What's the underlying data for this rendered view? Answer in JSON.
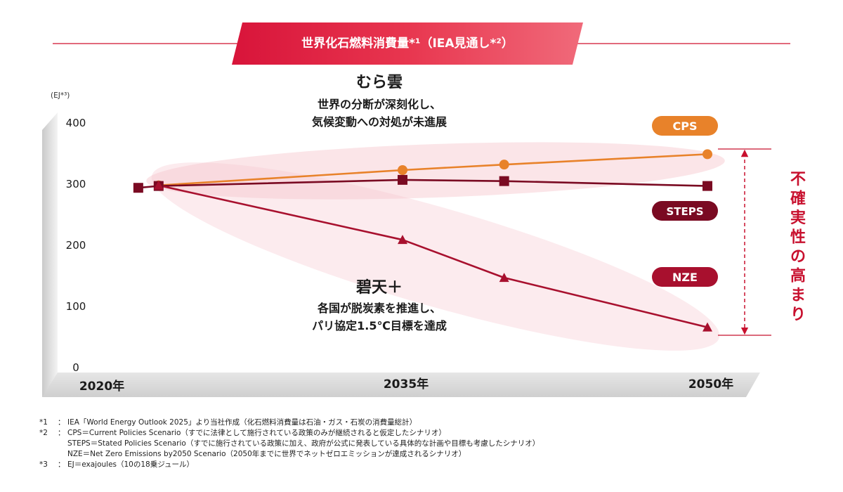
{
  "header": {
    "title": "世界化石燃料消費量*¹（IEA見通し*²）"
  },
  "chart_data": {
    "type": "line",
    "unit_label": "(EJ*³)",
    "ylim": [
      0,
      400
    ],
    "yticks": [
      0,
      100,
      200,
      300,
      400
    ],
    "x_tick_labels": [
      "2020年",
      "2035年",
      "2050年"
    ],
    "x": [
      2022,
      2023,
      2035,
      2040,
      2050
    ],
    "series": [
      {
        "name": "CPS",
        "marker": "circle",
        "color": "#e8822a",
        "values": [
          null,
          298,
          323,
          332,
          349
        ]
      },
      {
        "name": "STEPS",
        "marker": "square",
        "color": "#7a0a22",
        "values": [
          294,
          297,
          307,
          305,
          297
        ]
      },
      {
        "name": "NZE",
        "marker": "triangle",
        "color": "#a8102e",
        "values": [
          null,
          298,
          209,
          147,
          66
        ]
      }
    ],
    "annotations": {
      "murakumo": {
        "title": "むら雲",
        "lines": [
          "世界の分断が深刻化し、",
          "気候変動への対処が未進展"
        ]
      },
      "hekiten": {
        "title": "碧天＋",
        "lines": [
          "各国が脱炭素を推進し、",
          "パリ協定1.5℃目標を達成"
        ]
      },
      "uncertainty": "不確実性の高まり"
    }
  },
  "footnotes": [
    {
      "key": "*1",
      "sep": "：",
      "text": "IEA「World Energy Outlook 2025」より当社作成（化石燃料消費量は石油・ガス・石炭の消費量総計）"
    },
    {
      "key": "*2",
      "sep": "：",
      "text": "CPS＝Current Policies Scenario（すでに法律として施行されている政策のみが継続されると仮定したシナリオ）"
    },
    {
      "key": "",
      "sep": "",
      "text": "STEPS＝Stated Policies Scenario（すでに施行されている政策に加え、政府が公式に発表している具体的な計画や目標も考慮したシナリオ）"
    },
    {
      "key": "",
      "sep": "",
      "text": "NZE＝Net Zero Emissions by2050 Scenario（2050年までに世界でネットゼロエミッションが達成されるシナリオ）"
    },
    {
      "key": "*3",
      "sep": "：",
      "text": "EJ＝exajoules（10の18乗ジュール）"
    }
  ]
}
